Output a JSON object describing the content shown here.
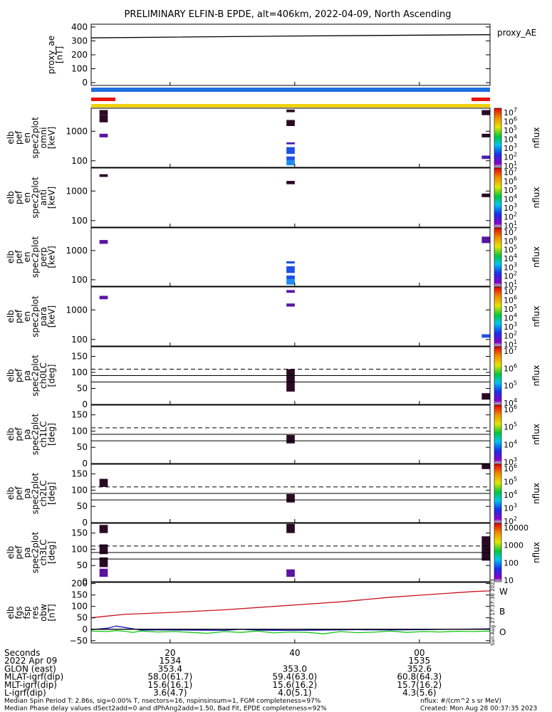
{
  "title": "PRELIMINARY ELFIN-B EPDE, alt=406km, 2022-04-09, North Ascending",
  "colors": {
    "blue_bar": "#1e6fe0",
    "red_bar": "#e8140a",
    "yellow_bar": "#f2d20c",
    "ae_line": "#000000",
    "fgs_w": "#c8141e",
    "fgs_b": "#14c814",
    "fgs_o": "#1414c8",
    "fgs_black": "#000000",
    "dark": "#2a0a24",
    "purple": "#5a14a0",
    "violet": "#4a1eb4",
    "blue": "#1e50e6",
    "lightblue": "#1e8cf0"
  },
  "chart_data": {
    "type": "multi-panel spectrogram",
    "x_range": [
      0,
      48
    ],
    "panels": [
      {
        "kind": "line",
        "ylabel": [
          "proxy_ae",
          "[nT]"
        ],
        "yticks": [
          "400",
          "300",
          "200",
          "100",
          "0"
        ],
        "ytick_values": [
          400,
          300,
          200,
          100,
          0
        ],
        "ylim": [
          -20,
          420
        ],
        "legend": "proxy_AE",
        "series": [
          {
            "x": [
              0,
              24,
              48
            ],
            "y": [
              322,
              335,
              345
            ]
          }
        ]
      },
      {
        "kind": "spec",
        "ylabel": [
          "elb",
          "pef",
          "en",
          "spec2plot",
          "omni",
          "[keV]"
        ],
        "yscale": "log",
        "ylim": [
          60,
          6000
        ],
        "yticks": [
          "1000",
          "100"
        ],
        "ytick_values": [
          1000,
          100
        ],
        "cbar": {
          "labels": [
            "10",
            "10",
            "10",
            "10",
            "10",
            "10",
            "10"
          ],
          "exps": [
            "7",
            "6",
            "5",
            "4",
            "3",
            "2",
            "1"
          ],
          "title": "nflux"
        },
        "blocks": [
          {
            "x": [
              1,
              2
            ],
            "y": [
              3500,
              5200
            ],
            "c": "dark"
          },
          {
            "x": [
              1,
              2
            ],
            "y": [
              2000,
              3500
            ],
            "c": "dark"
          },
          {
            "x": [
              1,
              2
            ],
            "y": [
              620,
              820
            ],
            "c": "purple"
          },
          {
            "x": [
              23.5,
              24.5
            ],
            "y": [
              4400,
              5400
            ],
            "c": "dark"
          },
          {
            "x": [
              23.5,
              24.5
            ],
            "y": [
              1500,
              2400
            ],
            "c": "dark"
          },
          {
            "x": [
              23.5,
              24.5
            ],
            "y": [
              360,
              420
            ],
            "c": "violet"
          },
          {
            "x": [
              23.5,
              24.5
            ],
            "y": [
              170,
              290
            ],
            "c": "blue"
          },
          {
            "x": [
              23.5,
              24.5
            ],
            "y": [
              105,
              140
            ],
            "c": "blue"
          },
          {
            "x": [
              23.5,
              24.5
            ],
            "y": [
              70,
              105
            ],
            "c": "lightblue"
          },
          {
            "x": [
              47,
              48
            ],
            "y": [
              3500,
              5200
            ],
            "c": "dark"
          },
          {
            "x": [
              47,
              48
            ],
            "y": [
              620,
              820
            ],
            "c": "dark"
          },
          {
            "x": [
              47,
              48
            ],
            "y": [
              115,
              150
            ],
            "c": "violet"
          }
        ]
      },
      {
        "kind": "spec",
        "ylabel": [
          "elb",
          "pef",
          "en",
          "spec2plot",
          "anti",
          "[keV]"
        ],
        "yscale": "log",
        "ylim": [
          60,
          6000
        ],
        "yticks": [
          "1000",
          "100"
        ],
        "ytick_values": [
          1000,
          100
        ],
        "cbar": {
          "labels": [
            "10",
            "10",
            "10",
            "10",
            "10",
            "10",
            "10"
          ],
          "exps": [
            "7",
            "6",
            "5",
            "4",
            "3",
            "2",
            "1"
          ],
          "title": "nflux"
        },
        "blocks": [
          {
            "x": [
              1,
              2
            ],
            "y": [
              3000,
              3700
            ],
            "c": "dark"
          },
          {
            "x": [
              23.5,
              24.5
            ],
            "y": [
              1700,
              2200
            ],
            "c": "dark"
          },
          {
            "x": [
              47,
              48
            ],
            "y": [
              620,
              820
            ],
            "c": "dark"
          }
        ]
      },
      {
        "kind": "spec",
        "ylabel": [
          "elb",
          "pef",
          "en",
          "spec2plot",
          "perp",
          "[keV]"
        ],
        "yscale": "log",
        "ylim": [
          60,
          6000
        ],
        "yticks": [
          "1000",
          "100"
        ],
        "ytick_values": [
          1000,
          100
        ],
        "cbar": {
          "labels": [
            "10",
            "10",
            "10",
            "10",
            "10",
            "10",
            "10"
          ],
          "exps": [
            "7",
            "6",
            "5",
            "4",
            "3",
            "2",
            "1"
          ],
          "title": "nflux"
        },
        "blocks": [
          {
            "x": [
              1,
              2
            ],
            "y": [
              1700,
              2300
            ],
            "c": "purple"
          },
          {
            "x": [
              23.5,
              24.5
            ],
            "y": [
              360,
              430
            ],
            "c": "blue"
          },
          {
            "x": [
              23.5,
              24.5
            ],
            "y": [
              170,
              290
            ],
            "c": "blue"
          },
          {
            "x": [
              23.5,
              24.5
            ],
            "y": [
              105,
              140
            ],
            "c": "blue"
          },
          {
            "x": [
              23.5,
              24.5
            ],
            "y": [
              68,
              105
            ],
            "c": "lightblue"
          },
          {
            "x": [
              47,
              48
            ],
            "y": [
              1800,
              3000
            ],
            "c": "purple"
          }
        ]
      },
      {
        "kind": "spec",
        "ylabel": [
          "elb",
          "pef",
          "en",
          "spec2plot",
          "para",
          "[keV]"
        ],
        "yscale": "log",
        "ylim": [
          60,
          6000
        ],
        "yticks": [
          "1000",
          "100"
        ],
        "ytick_values": [
          1000,
          100
        ],
        "cbar": {
          "labels": [
            "10",
            "10",
            "10",
            "10",
            "10",
            "10",
            "10"
          ],
          "exps": [
            "7",
            "6",
            "5",
            "4",
            "3",
            "2",
            "1"
          ],
          "title": "nflux"
        },
        "blocks": [
          {
            "x": [
              1,
              2
            ],
            "y": [
              2300,
              3000
            ],
            "c": "purple"
          },
          {
            "x": [
              23.5,
              24.5
            ],
            "y": [
              3800,
              4700
            ],
            "c": "purple"
          },
          {
            "x": [
              23.5,
              24.5
            ],
            "y": [
              1300,
              1650
            ],
            "c": "purple"
          },
          {
            "x": [
              47,
              48
            ],
            "y": [
              115,
              150
            ],
            "c": "blue"
          }
        ]
      },
      {
        "kind": "pa",
        "ylabel": [
          "elb",
          "pef",
          "pa",
          "spec2plot",
          "ch0LC",
          "[deg]"
        ],
        "ylim": [
          0,
          180
        ],
        "yticks": [
          "150",
          "100",
          "50",
          "0"
        ],
        "ytick_values": [
          150,
          100,
          50,
          0
        ],
        "lines": {
          "solid": [
            70,
            90
          ],
          "dashed": 110
        },
        "cbar": {
          "labels": [
            "10",
            "10",
            "10",
            "10"
          ],
          "exps": [
            "7",
            "6",
            "5",
            "4"
          ],
          "title": "nflux"
        },
        "blocks": [
          {
            "x": [
              23.5,
              24.5
            ],
            "y": [
              40,
              110
            ],
            "c": "dark"
          },
          {
            "x": [
              47,
              48
            ],
            "y": [
              15,
              35
            ],
            "c": "dark"
          }
        ]
      },
      {
        "kind": "pa",
        "ylabel": [
          "elb",
          "pef",
          "pa",
          "spec2plot",
          "ch1LC",
          "[deg]"
        ],
        "ylim": [
          0,
          180
        ],
        "yticks": [
          "150",
          "100",
          "50",
          "0"
        ],
        "ytick_values": [
          150,
          100,
          50,
          0
        ],
        "lines": {
          "solid": [
            70,
            90
          ],
          "dashed": 110
        },
        "cbar": {
          "labels": [
            "10",
            "10",
            "10",
            "10"
          ],
          "exps": [
            "6",
            "5",
            "4",
            "3"
          ],
          "title": "nflux"
        },
        "blocks": [
          {
            "x": [
              23.5,
              24.5
            ],
            "y": [
              62,
              88
            ],
            "c": "dark"
          }
        ]
      },
      {
        "kind": "pa",
        "ylabel": [
          "elb",
          "pef",
          "pa",
          "spec2plot",
          "ch2LC",
          "[deg]"
        ],
        "ylim": [
          0,
          180
        ],
        "yticks": [
          "150",
          "100",
          "50",
          "0"
        ],
        "ytick_values": [
          150,
          100,
          50,
          0
        ],
        "lines": {
          "solid": [
            70,
            90
          ],
          "dashed": 110
        },
        "cbar": {
          "labels": [
            "10",
            "10",
            "10",
            "10",
            "10"
          ],
          "exps": [
            "6",
            "5",
            "4",
            "3",
            "2"
          ],
          "title": "nflux"
        },
        "blocks": [
          {
            "x": [
              1,
              2
            ],
            "y": [
              110,
              135
            ],
            "c": "dark"
          },
          {
            "x": [
              23.5,
              24.5
            ],
            "y": [
              62,
              88
            ],
            "c": "dark"
          },
          {
            "x": [
              47,
              48
            ],
            "y": [
              165,
              182
            ],
            "c": "dark"
          }
        ]
      },
      {
        "kind": "pa",
        "ylabel": [
          "elb",
          "pef",
          "pa",
          "spec2plot",
          "ch3LC",
          "[deg]"
        ],
        "ylim": [
          0,
          180
        ],
        "yticks": [
          "150",
          "100",
          "50",
          "0"
        ],
        "ytick_values": [
          150,
          100,
          50,
          0
        ],
        "lines": {
          "solid": [
            70,
            90
          ],
          "dashed": 110
        },
        "cbar": {
          "labels": [
            "10000",
            "1000",
            "100",
            "10"
          ],
          "exps": [
            "",
            "",
            "",
            ""
          ],
          "title": "nflux"
        },
        "blocks": [
          {
            "x": [
              1,
              2
            ],
            "y": [
              150,
              175
            ],
            "c": "dark"
          },
          {
            "x": [
              1,
              2
            ],
            "y": [
              85,
              115
            ],
            "c": "dark"
          },
          {
            "x": [
              1,
              2
            ],
            "y": [
              45,
              75
            ],
            "c": "dark"
          },
          {
            "x": [
              1,
              2
            ],
            "y": [
              15,
              40
            ],
            "c": "purple"
          },
          {
            "x": [
              23.5,
              24.5
            ],
            "y": [
              150,
              178
            ],
            "c": "dark"
          },
          {
            "x": [
              23.5,
              24.5
            ],
            "y": [
              15,
              38
            ],
            "c": "purple"
          },
          {
            "x": [
              47,
              48
            ],
            "y": [
              65,
              140
            ],
            "c": "dark"
          }
        ]
      },
      {
        "kind": "fgs",
        "ylabel": [
          "elb",
          "fgs",
          "fsp",
          "res",
          "obw",
          "[nT]"
        ],
        "ylim": [
          -60,
          205
        ],
        "yticks": [
          "200",
          "150",
          "100",
          "50",
          "0",
          "−50"
        ],
        "ytick_values": [
          200,
          150,
          100,
          50,
          0,
          -50
        ],
        "labels": [
          "W",
          "B",
          "O"
        ],
        "side_text": "Sun Aug 27 17:37:36 2023",
        "series": [
          {
            "c": "fgs_w",
            "x": [
              0,
              2,
              4,
              6,
              10,
              16,
              20,
              26,
              30,
              36,
              40,
              46,
              48
            ],
            "y": [
              50,
              58,
              65,
              68,
              74,
              85,
              95,
              110,
              120,
              140,
              150,
              165,
              168
            ]
          },
          {
            "c": "fgs_b",
            "x": [
              0,
              2,
              3,
              4,
              5,
              6,
              8,
              10,
              12,
              14,
              16,
              18,
              20,
              22,
              24,
              26,
              28,
              30,
              32,
              34,
              36,
              38,
              40,
              42,
              44,
              46,
              48
            ],
            "y": [
              -8,
              -10,
              -6,
              -9,
              -14,
              -8,
              -12,
              -10,
              -14,
              -18,
              -10,
              -14,
              -8,
              -16,
              -12,
              -14,
              -20,
              -10,
              -15,
              -13,
              -8,
              -14,
              -10,
              -12,
              -9,
              -10,
              -8
            ]
          },
          {
            "c": "fgs_o",
            "x": [
              0,
              2,
              3,
              4,
              6,
              8,
              12,
              16,
              18,
              20,
              24,
              28,
              32,
              36,
              40,
              44,
              48
            ],
            "y": [
              -2,
              5,
              14,
              8,
              -4,
              -3,
              -4,
              -5,
              0,
              -4,
              -5,
              -4,
              -2,
              -3,
              -2,
              0,
              2
            ]
          },
          {
            "c": "fgs_black",
            "x": [
              0,
              48
            ],
            "y": [
              0,
              0
            ]
          }
        ]
      }
    ],
    "xticks": {
      "values": [
        9.5,
        24.5,
        39.5
      ],
      "labels": [
        "20",
        "40",
        "00"
      ]
    },
    "bottom_rows": [
      {
        "label": "Seconds",
        "values": [
          "20",
          "40",
          "00"
        ]
      },
      {
        "label": "2022 Apr 09",
        "values": [
          "1534",
          "",
          "1535"
        ]
      },
      {
        "label": "GLON (east)",
        "values": [
          "353.4",
          "353.0",
          "352.6"
        ]
      },
      {
        "label": "MLAT-igrf(dip)",
        "values": [
          "58.0(61.7)",
          "59.4(63.0)",
          "60.8(64.3)"
        ]
      },
      {
        "label": "MLT-igrf(dip)",
        "values": [
          "15.6(16.1)",
          "15.6(16.2)",
          "15.7(16.2)"
        ]
      },
      {
        "label": "L-igrf(dip)",
        "values": [
          "3.6(4.7)",
          "4.0(5.1)",
          "4.3(5.6)"
        ]
      }
    ],
    "footer": [
      {
        "left": "Median Spin Period T: 2.86s, sig=0.00% T, nsectors=16, nspinsinsum=1, FGM completeness=97%",
        "right": "nflux: #/(cm^2 s sr MeV)"
      },
      {
        "left": "Median Phase delay values dSect2add=0 and dPhAng2add=1.50, Bad Fit, EPDE completeness=92%",
        "right": "Created: Mon Aug 28 00:37:35 2023"
      }
    ]
  }
}
